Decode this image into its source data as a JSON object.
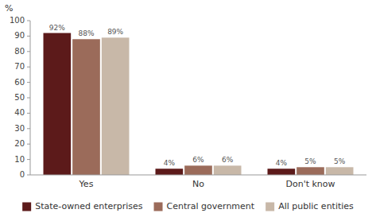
{
  "chart_data": {
    "type": "bar",
    "ylabel": "%",
    "categories": [
      "Yes",
      "No",
      "Don't know"
    ],
    "series": [
      {
        "name": "State-owned enterprises",
        "color": "#5C1A1A",
        "values": [
          92,
          4,
          4
        ],
        "value_labels": [
          "92%",
          "4%",
          "4%"
        ]
      },
      {
        "name": "Central government",
        "color": "#9B6B5A",
        "values": [
          88,
          6,
          5
        ],
        "value_labels": [
          "88%",
          "6%",
          "5%"
        ]
      },
      {
        "name": "All public entities",
        "color": "#C8B8A8",
        "values": [
          89,
          6,
          5
        ],
        "value_labels": [
          "89%",
          "6%",
          "5%"
        ]
      }
    ],
    "ylim": [
      0,
      100
    ],
    "yticks": [
      0,
      10,
      20,
      30,
      40,
      50,
      60,
      70,
      80,
      90,
      100
    ],
    "grid": false,
    "legend": "bottom",
    "data_labels": true
  }
}
